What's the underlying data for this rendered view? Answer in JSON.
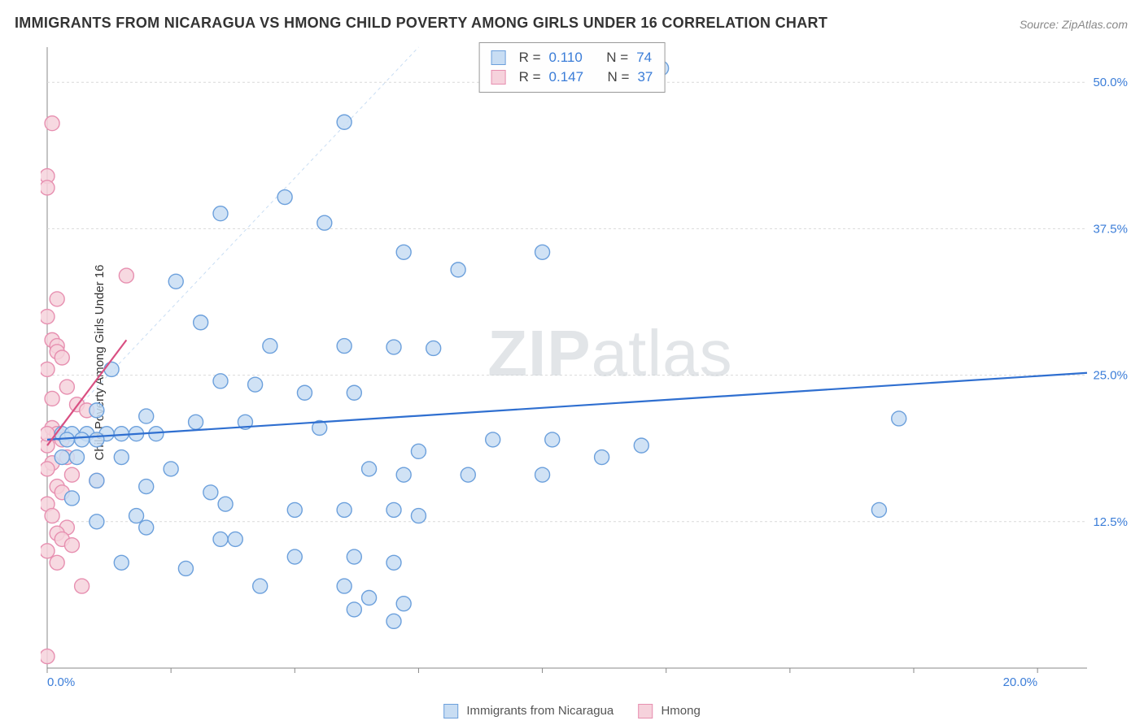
{
  "title": "IMMIGRANTS FROM NICARAGUA VS HMONG CHILD POVERTY AMONG GIRLS UNDER 16 CORRELATION CHART",
  "source": "Source: ZipAtlas.com",
  "y_axis_label": "Child Poverty Among Girls Under 16",
  "watermark": {
    "bold": "ZIP",
    "rest": "atlas"
  },
  "chart": {
    "type": "scatter",
    "xlim": [
      0,
      21
    ],
    "ylim": [
      0,
      53
    ],
    "x_ticks": [
      0,
      20
    ],
    "x_tick_labels": [
      "0.0%",
      "20.0%"
    ],
    "x_minor_ticks": [
      2.5,
      5,
      7.5,
      10,
      12.5,
      15,
      17.5
    ],
    "y_ticks": [
      12.5,
      25.0,
      37.5,
      50.0
    ],
    "y_tick_labels": [
      "12.5%",
      "25.0%",
      "37.5%",
      "50.0%"
    ],
    "background_color": "#ffffff",
    "grid_color": "#d9d9d9",
    "point_radius": 9,
    "point_stroke_width": 1.4,
    "series": [
      {
        "name": "Immigrants from Nicaragua",
        "fill": "#c8ddf3",
        "stroke": "#6ca0dc",
        "r": "0.110",
        "n": "74",
        "trend": {
          "x1": 0,
          "y1": 19.5,
          "x2": 21,
          "y2": 25.2,
          "color": "#2f6fd0",
          "width": 2.2
        },
        "ref_dash": {
          "x1": 0,
          "y1": 19.5,
          "x2": 7.5,
          "y2": 53,
          "color": "#c8ddf3",
          "width": 1
        },
        "points": [
          [
            12.4,
            51.2
          ],
          [
            6.0,
            46.6
          ],
          [
            4.8,
            40.2
          ],
          [
            3.5,
            38.8
          ],
          [
            5.6,
            38.0
          ],
          [
            7.2,
            35.5
          ],
          [
            10.0,
            35.5
          ],
          [
            8.3,
            34.0
          ],
          [
            2.6,
            33.0
          ],
          [
            3.1,
            29.5
          ],
          [
            4.5,
            27.5
          ],
          [
            6.0,
            27.5
          ],
          [
            7.0,
            27.4
          ],
          [
            7.8,
            27.3
          ],
          [
            1.3,
            25.5
          ],
          [
            3.5,
            24.5
          ],
          [
            4.2,
            24.2
          ],
          [
            5.2,
            23.5
          ],
          [
            6.2,
            23.5
          ],
          [
            17.2,
            21.3
          ],
          [
            1.0,
            22.0
          ],
          [
            2.0,
            21.5
          ],
          [
            3.0,
            21.0
          ],
          [
            4.0,
            21.0
          ],
          [
            5.5,
            20.5
          ],
          [
            0.3,
            20.0
          ],
          [
            0.5,
            20.0
          ],
          [
            0.8,
            20.0
          ],
          [
            1.2,
            20.0
          ],
          [
            1.5,
            20.0
          ],
          [
            1.8,
            20.0
          ],
          [
            2.2,
            20.0
          ],
          [
            0.4,
            19.5
          ],
          [
            0.7,
            19.5
          ],
          [
            1.0,
            19.5
          ],
          [
            9.0,
            19.5
          ],
          [
            10.2,
            19.5
          ],
          [
            12.0,
            19.0
          ],
          [
            7.5,
            18.5
          ],
          [
            11.2,
            18.0
          ],
          [
            0.3,
            18.0
          ],
          [
            0.6,
            18.0
          ],
          [
            1.5,
            18.0
          ],
          [
            2.5,
            17.0
          ],
          [
            6.5,
            17.0
          ],
          [
            7.2,
            16.5
          ],
          [
            8.5,
            16.5
          ],
          [
            10.0,
            16.5
          ],
          [
            1.0,
            16.0
          ],
          [
            2.0,
            15.5
          ],
          [
            3.3,
            15.0
          ],
          [
            3.6,
            14.0
          ],
          [
            5.0,
            13.5
          ],
          [
            6.0,
            13.5
          ],
          [
            7.0,
            13.5
          ],
          [
            7.5,
            13.0
          ],
          [
            16.8,
            13.5
          ],
          [
            2.0,
            12.0
          ],
          [
            3.5,
            11.0
          ],
          [
            3.8,
            11.0
          ],
          [
            5.0,
            9.5
          ],
          [
            6.2,
            9.5
          ],
          [
            7.0,
            9.0
          ],
          [
            1.5,
            9.0
          ],
          [
            2.8,
            8.5
          ],
          [
            4.3,
            7.0
          ],
          [
            6.0,
            7.0
          ],
          [
            6.5,
            6.0
          ],
          [
            7.2,
            5.5
          ],
          [
            6.2,
            5.0
          ],
          [
            7.0,
            4.0
          ],
          [
            1.0,
            12.5
          ],
          [
            1.8,
            13.0
          ],
          [
            0.5,
            14.5
          ]
        ]
      },
      {
        "name": "Hmong",
        "fill": "#f6d2dc",
        "stroke": "#e78fb0",
        "r": "0.147",
        "n": "37",
        "trend": {
          "x1": 0,
          "y1": 19.0,
          "x2": 1.6,
          "y2": 28.0,
          "color": "#d94f82",
          "width": 2.2
        },
        "points": [
          [
            0.1,
            46.5
          ],
          [
            0.0,
            42.0
          ],
          [
            0.0,
            41.0
          ],
          [
            1.6,
            33.5
          ],
          [
            0.2,
            31.5
          ],
          [
            0.0,
            30.0
          ],
          [
            0.1,
            28.0
          ],
          [
            0.2,
            27.5
          ],
          [
            0.2,
            27.0
          ],
          [
            0.3,
            26.5
          ],
          [
            0.0,
            25.5
          ],
          [
            0.4,
            24.0
          ],
          [
            0.1,
            23.0
          ],
          [
            0.6,
            22.5
          ],
          [
            0.8,
            22.0
          ],
          [
            0.1,
            20.5
          ],
          [
            0.2,
            20.0
          ],
          [
            0.3,
            19.5
          ],
          [
            0.0,
            19.0
          ],
          [
            0.4,
            18.0
          ],
          [
            0.1,
            17.5
          ],
          [
            0.0,
            17.0
          ],
          [
            0.5,
            16.5
          ],
          [
            1.0,
            16.0
          ],
          [
            0.2,
            15.5
          ],
          [
            0.3,
            15.0
          ],
          [
            0.0,
            14.0
          ],
          [
            0.1,
            13.0
          ],
          [
            0.4,
            12.0
          ],
          [
            0.2,
            11.5
          ],
          [
            0.3,
            11.0
          ],
          [
            0.5,
            10.5
          ],
          [
            0.0,
            10.0
          ],
          [
            0.2,
            9.0
          ],
          [
            0.7,
            7.0
          ],
          [
            0.0,
            1.0
          ],
          [
            0.0,
            20.0
          ]
        ]
      }
    ]
  },
  "stats_box": {
    "label_r": "R =",
    "label_n": "N ="
  },
  "bottom_legend_labels": [
    "Immigrants from Nicaragua",
    "Hmong"
  ]
}
